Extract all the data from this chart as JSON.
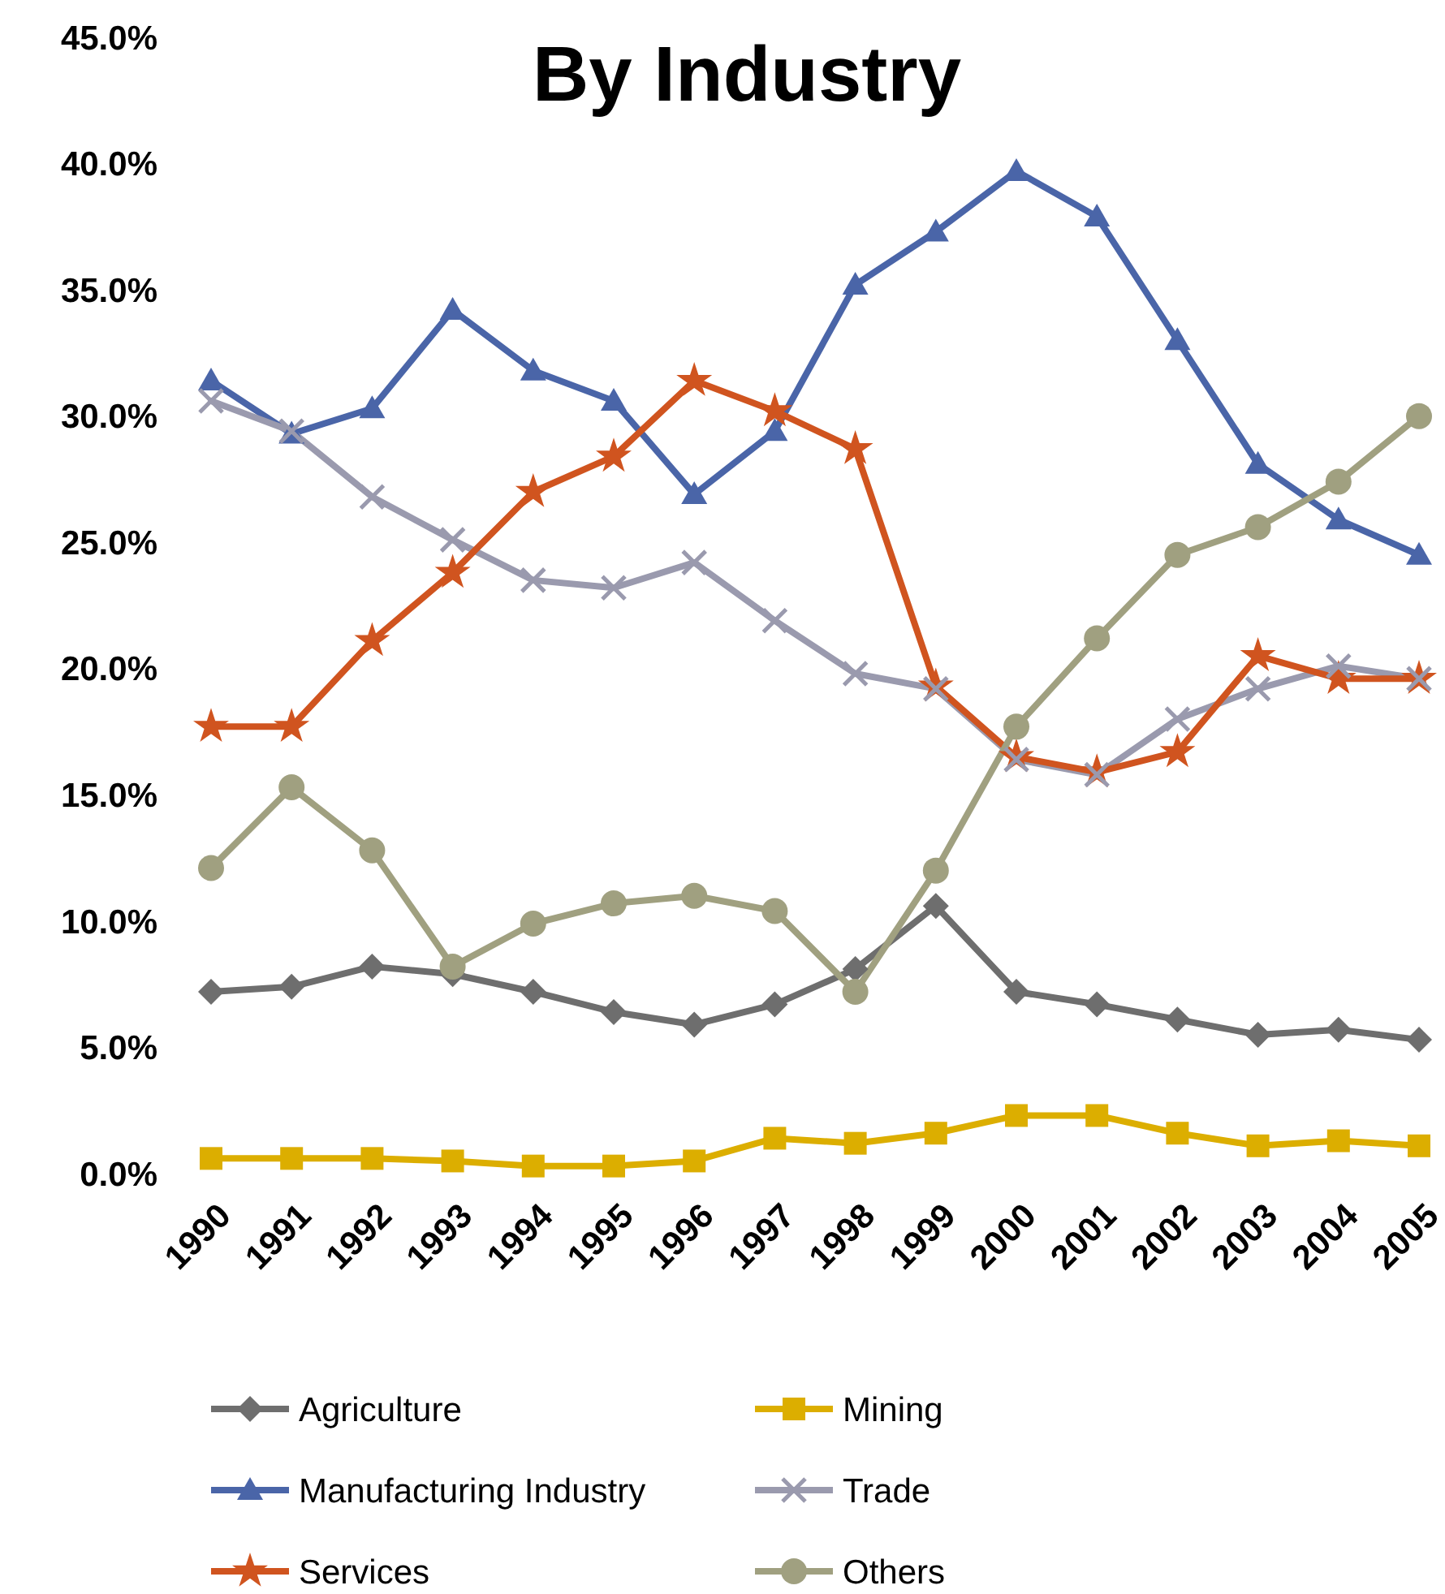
{
  "chart_data": {
    "type": "line",
    "title": "By Industry",
    "categories": [
      "1990",
      "1991",
      "1992",
      "1993",
      "1994",
      "1995",
      "1996",
      "1997",
      "1998",
      "1999",
      "2000",
      "2001",
      "2002",
      "2003",
      "2004",
      "2005"
    ],
    "ylim": [
      0,
      45
    ],
    "yticks": [
      {
        "value": 0,
        "label": "0.0%"
      },
      {
        "value": 5,
        "label": "5.0%"
      },
      {
        "value": 10,
        "label": "10.0%"
      },
      {
        "value": 15,
        "label": "15.0%"
      },
      {
        "value": 20,
        "label": "20.0%"
      },
      {
        "value": 25,
        "label": "25.0%"
      },
      {
        "value": 30,
        "label": "30.0%"
      },
      {
        "value": 35,
        "label": "35.0%"
      },
      {
        "value": 40,
        "label": "40.0%"
      },
      {
        "value": 45,
        "label": "45.0%"
      }
    ],
    "grid": false,
    "legend": "bottom",
    "line_style": "solid",
    "series": [
      {
        "name": "Agriculture",
        "color": "#6e6e6e",
        "marker": "diamond",
        "values": [
          7.2,
          7.4,
          8.2,
          7.9,
          7.2,
          6.4,
          5.9,
          6.7,
          8.1,
          10.6,
          7.2,
          6.7,
          6.1,
          5.5,
          5.7,
          5.3
        ]
      },
      {
        "name": "Mining",
        "color": "#dcae00",
        "marker": "square",
        "values": [
          0.6,
          0.6,
          0.6,
          0.5,
          0.3,
          0.3,
          0.5,
          1.4,
          1.2,
          1.6,
          2.3,
          2.3,
          1.6,
          1.1,
          1.3,
          1.1
        ]
      },
      {
        "name": "Manufacturing Industry",
        "color": "#4a65a8",
        "marker": "triangle",
        "values": [
          31.4,
          29.3,
          30.3,
          34.2,
          31.8,
          30.6,
          26.9,
          29.4,
          35.2,
          37.3,
          39.7,
          37.9,
          33.0,
          28.1,
          25.9,
          24.5
        ]
      },
      {
        "name": "Trade",
        "color": "#9a9aae",
        "marker": "cross",
        "values": [
          30.6,
          29.4,
          26.8,
          25.1,
          23.5,
          23.2,
          24.2,
          21.9,
          19.8,
          19.2,
          16.4,
          15.8,
          18.0,
          19.2,
          20.1,
          19.6
        ]
      },
      {
        "name": "Services",
        "color": "#d0541f",
        "marker": "star",
        "values": [
          17.7,
          17.7,
          21.1,
          23.8,
          27.0,
          28.4,
          31.4,
          30.2,
          28.7,
          19.3,
          16.5,
          15.9,
          16.7,
          20.5,
          19.6,
          19.6
        ]
      },
      {
        "name": "Others",
        "color": "#a0a080",
        "marker": "circle",
        "values": [
          12.1,
          15.3,
          12.8,
          8.2,
          9.9,
          10.7,
          11.0,
          10.4,
          7.2,
          12.0,
          17.7,
          21.2,
          24.5,
          25.6,
          27.4,
          30.0
        ]
      }
    ]
  }
}
